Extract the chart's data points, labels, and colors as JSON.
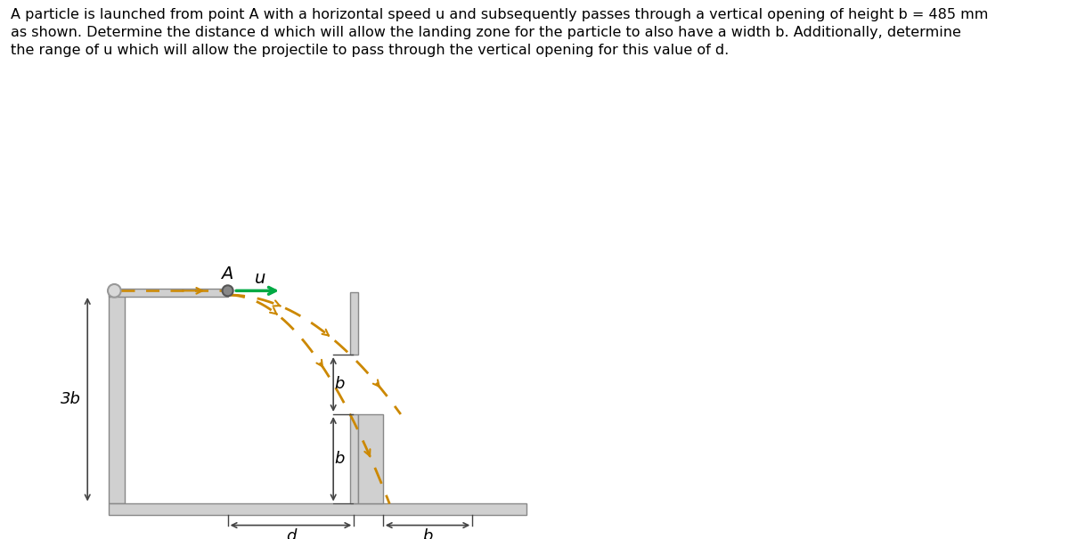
{
  "title_line1": "A particle is launched from point A with a horizontal speed u and subsequently passes through a vertical opening of height b = 485 mm",
  "title_line2": "as shown. Determine the distance d which will allow the landing zone for the particle to also have a width b. Additionally, determine",
  "title_line3": "the range of u which will allow the projectile to pass through the vertical opening for this value of d.",
  "title_fontsize": 11.5,
  "bg_color": "#ffffff",
  "wall_color": "#d0d0d0",
  "wall_edge_color": "#888888",
  "trajectory_color": "#cc8800",
  "arrow_color": "#00aa44",
  "dim_color": "#444444"
}
